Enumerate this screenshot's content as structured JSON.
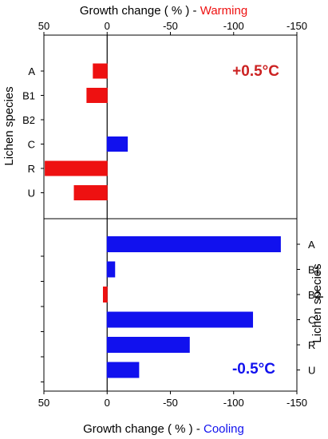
{
  "chart_data": {
    "type": "bar",
    "orientation": "horizontal",
    "x_axis_reversed": true,
    "xlim": [
      50,
      -150
    ],
    "xticks": [
      "50",
      "0",
      "-50",
      "-100",
      "-150"
    ],
    "colors": {
      "warming": "#ee1111",
      "cooling": "#1111ee"
    },
    "panels": [
      {
        "title_prefix": "Growth change ( % ) - ",
        "title_suffix": "Warming",
        "annotation": "+0.5°C",
        "ylabel": "Lichen species",
        "categories": [
          "A",
          "B1",
          "B2",
          "C",
          "R",
          "U"
        ],
        "values": [
          11,
          16,
          0,
          -16,
          49,
          26
        ],
        "bar_colors": [
          "warming",
          "warming",
          "warming",
          "cooling",
          "warming",
          "warming"
        ]
      },
      {
        "title_prefix": "Growth change ( % ) - ",
        "title_suffix": "Cooling",
        "annotation": "-0.5°C",
        "ylabel": "Lichen species",
        "categories": [
          "A",
          "B1",
          "B2",
          "C",
          "R",
          "U"
        ],
        "values": [
          -137,
          -6,
          3,
          -115,
          -65,
          -25
        ],
        "bar_colors": [
          "cooling",
          "cooling",
          "warming",
          "cooling",
          "cooling",
          "cooling"
        ]
      }
    ]
  }
}
